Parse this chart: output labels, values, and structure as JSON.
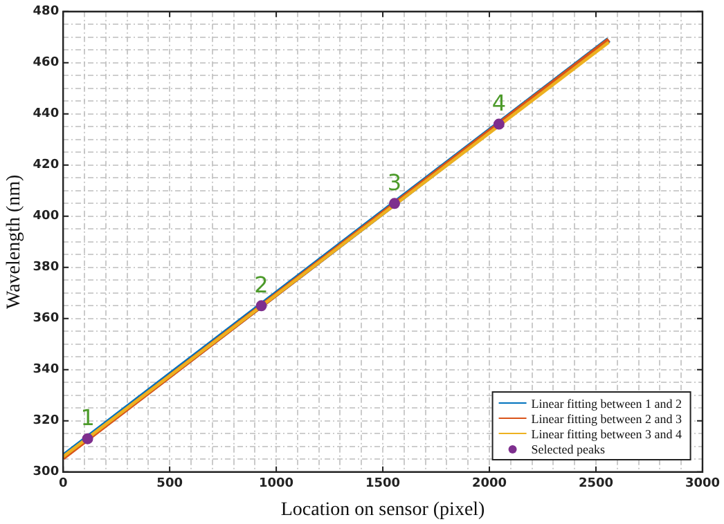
{
  "chart_data": {
    "type": "line",
    "xlabel": "Location on sensor (pixel)",
    "ylabel": "Wavelength (nm)",
    "xlim": [
      0,
      3000
    ],
    "ylim": [
      300,
      480
    ],
    "xticks": [
      0,
      {
        "value": 100,
        "label": null
      },
      {
        "value": 200,
        "label": null
      },
      {
        "value": 300,
        "label": null
      },
      {
        "value": 400,
        "label": null
      },
      500,
      {
        "value": 600,
        "label": null
      },
      {
        "value": 700,
        "label": null
      },
      {
        "value": 800,
        "label": null
      },
      {
        "value": 900,
        "label": null
      },
      1000,
      {
        "value": 1100,
        "label": null
      },
      {
        "value": 1200,
        "label": null
      },
      {
        "value": 1300,
        "label": null
      },
      {
        "value": 1400,
        "label": null
      },
      1500,
      {
        "value": 1600,
        "label": null
      },
      {
        "value": 1700,
        "label": null
      },
      {
        "value": 1800,
        "label": null
      },
      {
        "value": 1900,
        "label": null
      },
      2000,
      {
        "value": 2100,
        "label": null
      },
      {
        "value": 2200,
        "label": null
      },
      {
        "value": 2300,
        "label": null
      },
      {
        "value": 2400,
        "label": null
      },
      2500,
      {
        "value": 2600,
        "label": null
      },
      {
        "value": 2700,
        "label": null
      },
      {
        "value": 2800,
        "label": null
      },
      {
        "value": 2900,
        "label": null
      },
      3000
    ],
    "yticks": [
      300,
      {
        "value": 305,
        "label": null
      },
      {
        "value": 310,
        "label": null
      },
      {
        "value": 315,
        "label": null
      },
      320,
      {
        "value": 325,
        "label": null
      },
      {
        "value": 330,
        "label": null
      },
      {
        "value": 335,
        "label": null
      },
      340,
      {
        "value": 345,
        "label": null
      },
      {
        "value": 350,
        "label": null
      },
      {
        "value": 355,
        "label": null
      },
      360,
      {
        "value": 365,
        "label": null
      },
      {
        "value": 370,
        "label": null
      },
      {
        "value": 375,
        "label": null
      },
      380,
      {
        "value": 385,
        "label": null
      },
      {
        "value": 390,
        "label": null
      },
      {
        "value": 395,
        "label": null
      },
      400,
      {
        "value": 405,
        "label": null
      },
      {
        "value": 410,
        "label": null
      },
      {
        "value": 415,
        "label": null
      },
      420,
      {
        "value": 425,
        "label": null
      },
      {
        "value": 430,
        "label": null
      },
      {
        "value": 435,
        "label": null
      },
      440,
      {
        "value": 445,
        "label": null
      },
      {
        "value": 450,
        "label": null
      },
      {
        "value": 455,
        "label": null
      },
      460,
      {
        "value": 465,
        "label": null
      },
      {
        "value": 470,
        "label": null
      },
      {
        "value": 475,
        "label": null
      },
      480
    ],
    "grid": true,
    "legend": "bottom right",
    "line_style": "solid",
    "series": [
      {
        "name": "Linear fitting between 1 and 2",
        "color": "#0072bd",
        "marker": "none",
        "x": [
          0,
          2560
        ],
        "values": [
          306,
          469
        ]
      },
      {
        "name": "Linear fitting between 2 and 3",
        "color": "#d95319",
        "marker": "none",
        "x": [
          0,
          2560
        ],
        "values": [
          305.5,
          469
        ]
      },
      {
        "name": "Linear fitting between 3 and 4",
        "color": "#edb120",
        "marker": "none",
        "x": [
          0,
          2560
        ],
        "values": [
          306,
          468
        ]
      },
      {
        "name": "Selected peaks",
        "color": "#7e2f8e",
        "type": "scatter",
        "marker": "circle",
        "x": [
          115,
          930,
          1555,
          2045
        ],
        "values": [
          313,
          365,
          405,
          436
        ]
      }
    ],
    "annotations": [
      {
        "text": "1",
        "x": 115,
        "y": 313
      },
      {
        "text": "2",
        "x": 930,
        "y": 365
      },
      {
        "text": "3",
        "x": 1555,
        "y": 405
      },
      {
        "text": "4",
        "x": 2045,
        "y": 436
      }
    ]
  }
}
